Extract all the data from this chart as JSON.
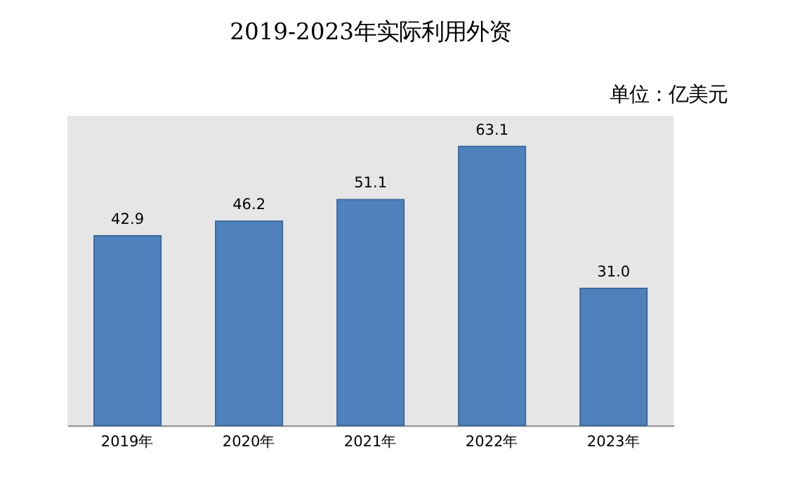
{
  "chart_data": {
    "type": "bar",
    "title": "2019-2023年实际利用外资",
    "subtitle": "单位：亿美元",
    "categories": [
      "2019年",
      "2020年",
      "2021年",
      "2022年",
      "2023年"
    ],
    "values": [
      42.9,
      46.2,
      51.1,
      63.1,
      31.0
    ],
    "value_labels": [
      "42.9",
      "46.2",
      "51.1",
      "63.1",
      "31.0"
    ],
    "color": "#4f81bd"
  }
}
